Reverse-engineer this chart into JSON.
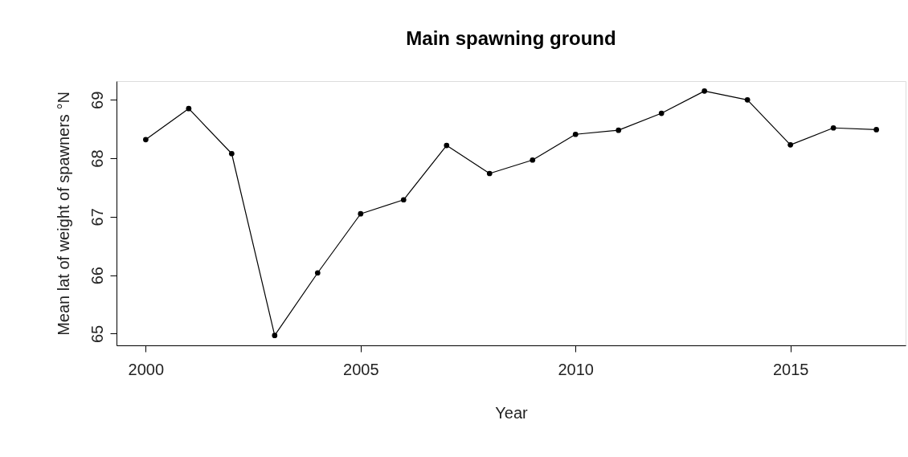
{
  "chart_data": {
    "type": "line",
    "title": "Main spawning ground",
    "xlabel": "Year",
    "ylabel": "Mean lat of weight of spawners °N",
    "x": [
      2000,
      2001,
      2002,
      2003,
      2004,
      2005,
      2006,
      2007,
      2008,
      2009,
      2010,
      2011,
      2012,
      2013,
      2014,
      2015,
      2016,
      2017
    ],
    "series": [
      {
        "color": "#000000",
        "values": [
          68.32,
          68.85,
          68.08,
          64.97,
          66.04,
          67.05,
          67.29,
          68.22,
          67.74,
          67.97,
          68.41,
          68.48,
          68.77,
          69.15,
          69.0,
          68.23,
          68.52,
          68.49
        ]
      }
    ],
    "xlim": [
      1999.32,
      2017.68
    ],
    "ylim": [
      64.8,
      69.32
    ],
    "xticks": [
      2000,
      2005,
      2010,
      2015
    ],
    "yticks": [
      65,
      66,
      67,
      68,
      69
    ],
    "grid": false,
    "marker": "circle",
    "line_style": "solid"
  }
}
